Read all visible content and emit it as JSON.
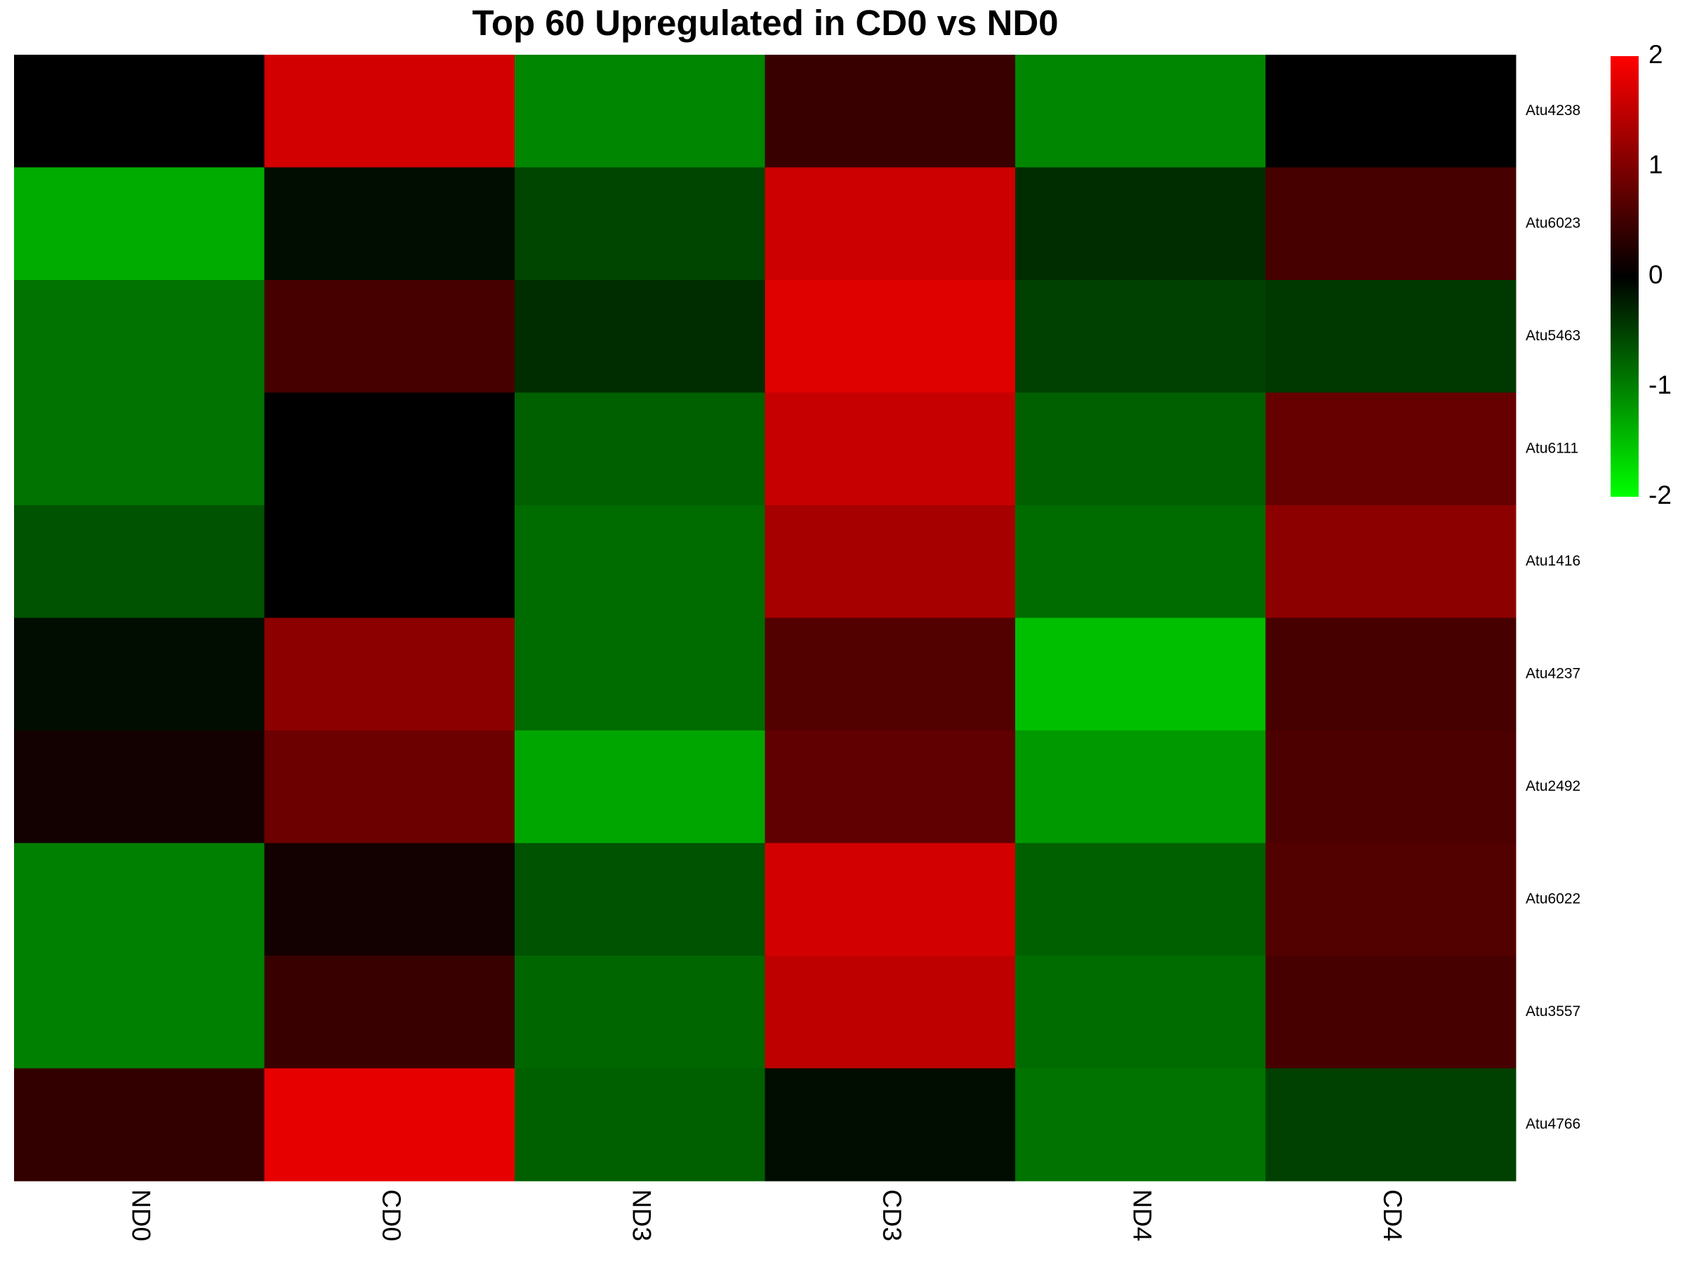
{
  "chart_data": {
    "type": "heatmap",
    "title": "Top 60 Upregulated in CD0 vs ND0",
    "columns": [
      "ND0",
      "CD0",
      "ND3",
      "CD3",
      "ND4",
      "CD4"
    ],
    "rows": [
      "Atu4238",
      "Atu6023",
      "Atu5463",
      "Atu6111",
      "Atu1416",
      "Atu4237",
      "Atu2492",
      "Atu6022",
      "Atu3557",
      "Atu4766"
    ],
    "values": [
      [
        0.0,
        1.65,
        -1.05,
        0.45,
        -1.05,
        0.0
      ],
      [
        -1.35,
        -0.1,
        -0.55,
        1.6,
        -0.35,
        0.55
      ],
      [
        -0.9,
        0.55,
        -0.35,
        1.75,
        -0.5,
        -0.45
      ],
      [
        -0.9,
        0.0,
        -0.75,
        1.55,
        -0.75,
        0.8
      ],
      [
        -0.65,
        0.0,
        -0.85,
        1.3,
        -0.85,
        1.1
      ],
      [
        -0.1,
        1.1,
        -0.85,
        0.65,
        -1.5,
        0.55
      ],
      [
        0.15,
        0.85,
        -1.3,
        0.75,
        -1.2,
        0.6
      ],
      [
        -1.0,
        0.15,
        -0.65,
        1.65,
        -0.75,
        0.65
      ],
      [
        -1.0,
        0.45,
        -0.8,
        1.5,
        -0.85,
        0.55
      ],
      [
        0.4,
        1.8,
        -0.75,
        -0.1,
        -0.9,
        -0.5
      ]
    ],
    "color_scale": {
      "min": -2,
      "max": 2,
      "low_color": "#00ff00",
      "mid_color": "#000000",
      "high_color": "#ff0000",
      "ticks": [
        "2",
        "1",
        "0",
        "-1",
        "-2"
      ]
    }
  }
}
